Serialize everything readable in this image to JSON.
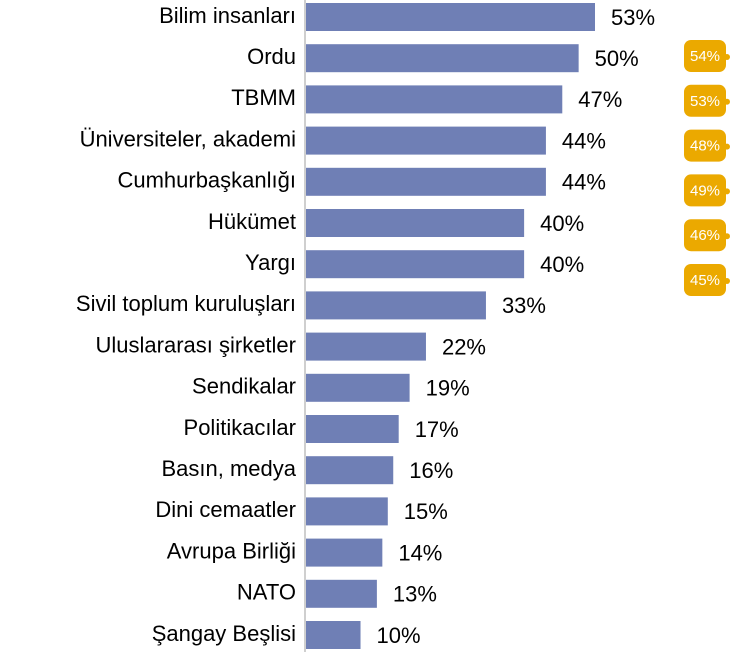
{
  "chart_data": {
    "type": "bar",
    "orientation": "horizontal",
    "categories": [
      "Bilim insanları",
      "Ordu",
      "TBMM ",
      "Üniversiteler, akademi",
      "Cumhurbaşkanlığı",
      "Hükümet",
      "Yargı",
      "Sivil toplum kuruluşları",
      "Uluslararası şirketler",
      "Sendikalar",
      "Politikacılar",
      "Basın, medya",
      "Dini cemaatler",
      "Avrupa Birliği",
      "NATO",
      "Şangay Beşlisi"
    ],
    "values": [
      53,
      50,
      47,
      44,
      44,
      40,
      40,
      33,
      22,
      19,
      17,
      16,
      15,
      14,
      13,
      10
    ],
    "value_labels": [
      "53%",
      "50%",
      "47%",
      "44%",
      "44%",
      "40%",
      "40%",
      "33%",
      "22%",
      "19%",
      "17%",
      "16%",
      "15%",
      "14%",
      "13%",
      "10%"
    ],
    "color": "#6f7fb5",
    "callouts": {
      "color": "#eba900",
      "values": [
        54,
        53,
        48,
        49,
        46,
        45
      ],
      "value_labels": [
        "54%",
        "53%",
        "48%",
        "49%",
        "46%",
        "45%"
      ]
    }
  }
}
